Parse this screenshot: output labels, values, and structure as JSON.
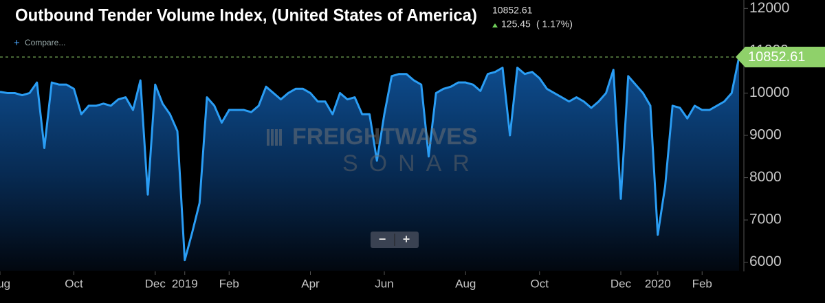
{
  "chart_data": {
    "type": "area",
    "title": "Outbound Tender Volume Index, (United States of America)",
    "current_value": "10852.61",
    "change": "125.45",
    "change_percent": "( 1.17%)",
    "compare": "Compare...",
    "watermark": [
      "FREIGHTWAVES",
      "SONAR"
    ],
    "zoom": [
      "−",
      "+"
    ],
    "categories": [
      "Aug",
      null,
      null,
      null,
      null,
      null,
      null,
      null,
      null,
      null,
      "Oct",
      null,
      null,
      null,
      null,
      null,
      null,
      null,
      null,
      null,
      null,
      "Dec",
      null,
      null,
      null,
      "2019",
      null,
      null,
      null,
      null,
      null,
      "Feb",
      null,
      null,
      null,
      null,
      null,
      null,
      null,
      null,
      null,
      null,
      "Apr",
      null,
      null,
      null,
      null,
      null,
      null,
      null,
      null,
      null,
      "Jun",
      null,
      null,
      null,
      null,
      null,
      null,
      null,
      null,
      null,
      null,
      "Aug",
      null,
      null,
      null,
      null,
      null,
      null,
      null,
      null,
      null,
      "Oct",
      null,
      null,
      null,
      null,
      null,
      null,
      null,
      null,
      null,
      null,
      "Dec",
      null,
      null,
      null,
      null,
      "2020",
      null,
      null,
      null,
      null,
      null,
      "Feb",
      null,
      null,
      null,
      null,
      null
    ],
    "series": [
      {
        "color": "#2a9df4",
        "values": [
          10030,
          10000,
          10000,
          9950,
          10000,
          10250,
          8700,
          10250,
          10200,
          10200,
          10100,
          9500,
          9700,
          9700,
          9750,
          9700,
          9850,
          9900,
          9600,
          10300,
          7600,
          10200,
          9750,
          9500,
          9100,
          6050,
          6700,
          7400,
          9900,
          9700,
          9300,
          9600,
          9600,
          9600,
          9550,
          9700,
          10150,
          10000,
          9850,
          10000,
          10100,
          10100,
          10000,
          9800,
          9800,
          9500,
          10000,
          9850,
          9900,
          9500,
          9500,
          8400,
          9500,
          10400,
          10450,
          10450,
          10300,
          10200,
          8500,
          10000,
          10100,
          10150,
          10250,
          10250,
          10200,
          10050,
          10450,
          10500,
          10600,
          9000,
          10600,
          10450,
          10500,
          10350,
          10100,
          10000,
          9900,
          9800,
          9900,
          9800,
          9650,
          9800,
          10000,
          10550,
          7500,
          10400,
          10200,
          10000,
          9700,
          6650,
          7800,
          9700,
          9650,
          9400,
          9700,
          9600,
          9600,
          9700,
          9800,
          10000,
          10852.61
        ]
      }
    ],
    "ylim": [
      5800,
      12200
    ],
    "yticks": [
      6000,
      7000,
      8000,
      9000,
      10000,
      11000,
      12000
    ]
  }
}
